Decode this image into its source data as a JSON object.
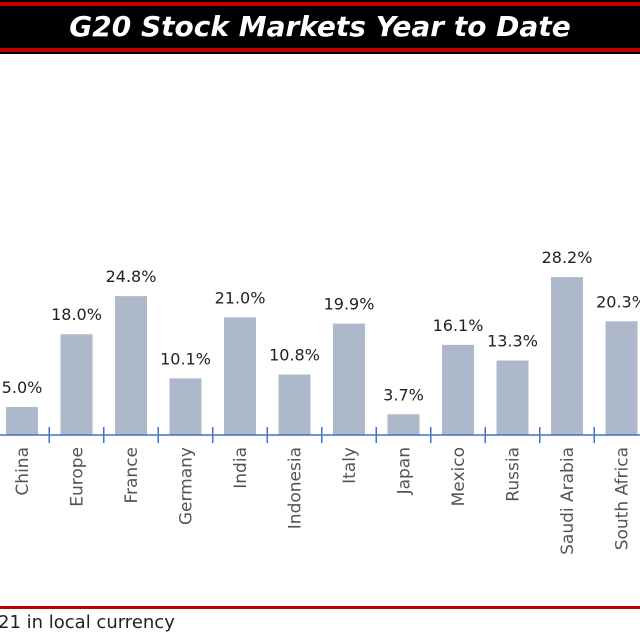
{
  "title": "G20 Stock Markets Year to Date",
  "footnote": "21 in local currency",
  "colors": {
    "bar": "#adb9ca",
    "axis": "#4472c4",
    "accent": "#c00000",
    "title_bg": "#000000",
    "label": "#222222"
  },
  "chart_data": {
    "type": "bar",
    "title": "G20 Stock Markets Year to Date",
    "xlabel": "",
    "ylabel": "",
    "categories": [
      "China",
      "Europe",
      "France",
      "Germany",
      "India",
      "Indonesia",
      "Italy",
      "Japan",
      "Mexico",
      "Russia",
      "Saudi Arabia",
      "South Africa"
    ],
    "values": [
      5.0,
      18.0,
      24.8,
      10.1,
      21.0,
      10.8,
      19.9,
      3.7,
      16.1,
      13.3,
      28.2,
      20.3
    ],
    "data_labels": [
      "5.0%",
      "18.0%",
      "24.8%",
      "10.1%",
      "21.0%",
      "10.8%",
      "19.9%",
      "3.7%",
      "16.1%",
      "13.3%",
      "28.2%",
      "20.3%"
    ],
    "grid": false,
    "legend": "none"
  }
}
